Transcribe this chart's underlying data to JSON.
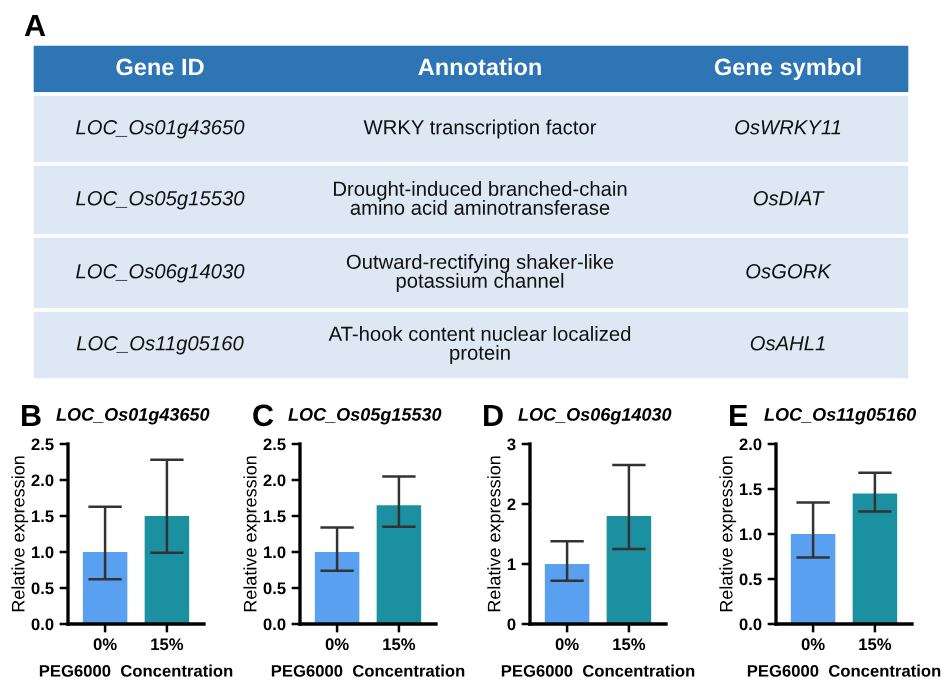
{
  "chart_data": [
    {
      "type": "other",
      "title": "A",
      "annotations": [
        "Gene ID",
        "Annotation",
        "Gene symbol",
        "LOC_Os01g43650",
        "WRKY transcription factor",
        "OsWRKY11",
        "LOC_Os05g15530",
        "Drought-induced branched-chain\namino acid aminotransferase",
        "OsDIAT",
        "LOC_Os06g14030",
        "Outward-rectifying shaker-like\npotassium channel",
        "OsGORK",
        "LOC_Os11g05160",
        "AT-hook content nuclear localized\nprotein",
        "OsAHL1"
      ]
    },
    {
      "type": "bar",
      "title": "B",
      "subtitle": "LOC_Os01g43650",
      "xlabel": "PEG6000  Concentration",
      "ylabel": "Relative expression",
      "categories": [
        "0%",
        "15%"
      ],
      "values": [
        1.0,
        1.5
      ],
      "colors": [
        "#5aa0f0",
        "#1a90a0"
      ],
      "errors": [
        [
          0.62,
          1.63
        ],
        [
          0.99,
          2.28
        ]
      ],
      "ylim": [
        0,
        2.5
      ],
      "yticks": [
        {
          "value": 0,
          "label": "0.0"
        },
        {
          "value": 0.5,
          "label": "0.5"
        },
        {
          "value": 1,
          "label": "1.0"
        },
        {
          "value": 1.5,
          "label": "1.5"
        },
        {
          "value": 2,
          "label": "2.0"
        },
        {
          "value": 2.5,
          "label": "2.5"
        }
      ]
    },
    {
      "type": "bar",
      "title": "C",
      "subtitle": "LOC_Os05g15530",
      "xlabel": "PEG6000  Concentration",
      "ylabel": "Relative expression",
      "categories": [
        "0%",
        "15%"
      ],
      "values": [
        1.0,
        1.65
      ],
      "colors": [
        "#5aa0f0",
        "#1a90a0"
      ],
      "errors": [
        [
          0.74,
          1.34
        ],
        [
          1.35,
          2.05
        ]
      ],
      "ylim": [
        0,
        2.5
      ],
      "yticks": [
        {
          "value": 0,
          "label": "0.0"
        },
        {
          "value": 0.5,
          "label": "0.5"
        },
        {
          "value": 1,
          "label": "1.0"
        },
        {
          "value": 1.5,
          "label": "1.5"
        },
        {
          "value": 2,
          "label": "2.0"
        },
        {
          "value": 2.5,
          "label": "2.5"
        }
      ]
    },
    {
      "type": "bar",
      "title": "D",
      "subtitle": "LOC_Os06g14030",
      "xlabel": "PEG6000  Concentration",
      "ylabel": "Relative expression",
      "categories": [
        "0%",
        "15%"
      ],
      "values": [
        1.0,
        1.8
      ],
      "colors": [
        "#5aa0f0",
        "#1a90a0"
      ],
      "errors": [
        [
          0.72,
          1.38
        ],
        [
          1.25,
          2.65
        ]
      ],
      "ylim": [
        0,
        3
      ],
      "yticks": [
        0,
        1,
        2,
        3
      ]
    },
    {
      "type": "bar",
      "title": "E",
      "subtitle": "LOC_Os11g05160",
      "xlabel": "PEG6000  Concentration",
      "ylabel": "Relative expression",
      "categories": [
        "0%",
        "15%"
      ],
      "values": [
        1.0,
        1.45
      ],
      "colors": [
        "#5aa0f0",
        "#1a90a0"
      ],
      "errors": [
        [
          0.74,
          1.35
        ],
        [
          1.25,
          1.68
        ]
      ],
      "ylim": [
        0,
        2
      ],
      "yticks": [
        {
          "value": 0,
          "label": "0.0"
        },
        {
          "value": 0.5,
          "label": "0.5"
        },
        {
          "value": 1,
          "label": "1.0"
        },
        {
          "value": 1.5,
          "label": "1.5"
        },
        {
          "value": 2,
          "label": "2.0"
        }
      ]
    }
  ]
}
